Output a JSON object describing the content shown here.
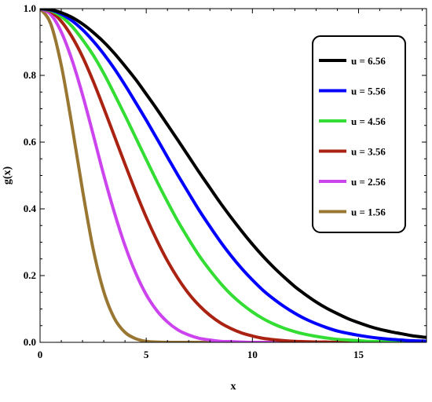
{
  "chart_data": {
    "type": "line",
    "title": "",
    "xlabel": "x",
    "ylabel": "g(x)",
    "xlim": [
      0,
      18.2
    ],
    "ylim": [
      0,
      1.0
    ],
    "x_ticks": [
      0,
      5,
      10,
      15
    ],
    "y_ticks": [
      0.0,
      0.2,
      0.4,
      0.6,
      0.8,
      1.0
    ],
    "x_tick_labels": [
      "0",
      "5",
      "10",
      "15"
    ],
    "y_tick_labels": [
      "0.0",
      "0.2",
      "0.4",
      "0.6",
      "0.8",
      "1.0"
    ],
    "grid": false,
    "legend_position": "top-right",
    "x": [
      0,
      0.5,
      1,
      1.5,
      2,
      2.5,
      3,
      3.5,
      4,
      4.5,
      5,
      5.5,
      6,
      6.5,
      7,
      7.5,
      8,
      8.5,
      9,
      9.5,
      10,
      10.5,
      11,
      11.5,
      12,
      12.5,
      13,
      13.5,
      14,
      14.5,
      15,
      15.5,
      16,
      16.5,
      17,
      17.5,
      18,
      18.2
    ],
    "series": [
      {
        "name": "u = 6.56",
        "color": "#000000",
        "values": [
          1.0,
          0.997,
          0.988,
          0.974,
          0.954,
          0.929,
          0.9,
          0.866,
          0.828,
          0.788,
          0.744,
          0.699,
          0.652,
          0.605,
          0.557,
          0.509,
          0.463,
          0.417,
          0.374,
          0.333,
          0.294,
          0.258,
          0.225,
          0.195,
          0.167,
          0.143,
          0.121,
          0.102,
          0.086,
          0.071,
          0.059,
          0.048,
          0.039,
          0.032,
          0.026,
          0.02,
          0.016,
          0.015
        ]
      },
      {
        "name": "u = 5.56",
        "color": "#0000ff",
        "values": [
          1.0,
          0.996,
          0.984,
          0.964,
          0.937,
          0.903,
          0.864,
          0.82,
          0.771,
          0.719,
          0.666,
          0.611,
          0.555,
          0.5,
          0.447,
          0.395,
          0.347,
          0.301,
          0.259,
          0.221,
          0.187,
          0.156,
          0.13,
          0.107,
          0.087,
          0.07,
          0.056,
          0.044,
          0.034,
          0.027,
          0.021,
          0.016,
          0.012,
          0.009,
          0.007,
          0.005,
          0.004,
          0.003
        ]
      },
      {
        "name": "u = 4.56",
        "color": "#33dd33",
        "values": [
          1.0,
          0.994,
          0.976,
          0.947,
          0.907,
          0.861,
          0.806,
          0.744,
          0.68,
          0.614,
          0.548,
          0.483,
          0.421,
          0.362,
          0.309,
          0.259,
          0.216,
          0.177,
          0.143,
          0.115,
          0.091,
          0.071,
          0.055,
          0.042,
          0.032,
          0.024,
          0.018,
          0.013,
          0.009,
          0.007,
          0.005,
          0.003,
          0.002,
          0.002,
          0.001,
          0.001,
          0.001,
          0.0
        ]
      },
      {
        "name": "u = 3.56",
        "color": "#aa2211",
        "values": [
          1.0,
          0.991,
          0.962,
          0.916,
          0.856,
          0.783,
          0.702,
          0.618,
          0.534,
          0.452,
          0.375,
          0.306,
          0.244,
          0.191,
          0.146,
          0.11,
          0.081,
          0.058,
          0.041,
          0.028,
          0.019,
          0.012,
          0.008,
          0.005,
          0.003,
          0.002,
          0.001,
          0.001,
          0.0,
          0.0,
          0.0,
          0.0,
          0.0,
          0.0,
          0.0,
          0.0,
          0.0,
          0.0
        ]
      },
      {
        "name": "u = 2.56",
        "color": "#cc44ee",
        "values": [
          1.0,
          0.983,
          0.93,
          0.847,
          0.742,
          0.623,
          0.501,
          0.389,
          0.29,
          0.208,
          0.143,
          0.095,
          0.061,
          0.037,
          0.022,
          0.012,
          0.007,
          0.003,
          0.002,
          0.001,
          0.0,
          0.0,
          0.0,
          0.0,
          0.0,
          0.0,
          0.0,
          0.0,
          0.0,
          0.0,
          0.0,
          0.0,
          0.0,
          0.0,
          0.0,
          0.0,
          0.0,
          0.0
        ]
      },
      {
        "name": "u = 1.56",
        "color": "#997733",
        "values": [
          1.0,
          0.955,
          0.83,
          0.651,
          0.456,
          0.28,
          0.152,
          0.072,
          0.03,
          0.011,
          0.003,
          0.001,
          0.0,
          0.0,
          0.0,
          0.0,
          0.0,
          0.0,
          0.0,
          0.0,
          0.0,
          0.0,
          0.0,
          0.0,
          0.0,
          0.0,
          0.0,
          0.0,
          0.0,
          0.0,
          0.0,
          0.0,
          0.0,
          0.0,
          0.0,
          0.0,
          0.0,
          0.0
        ]
      }
    ]
  }
}
